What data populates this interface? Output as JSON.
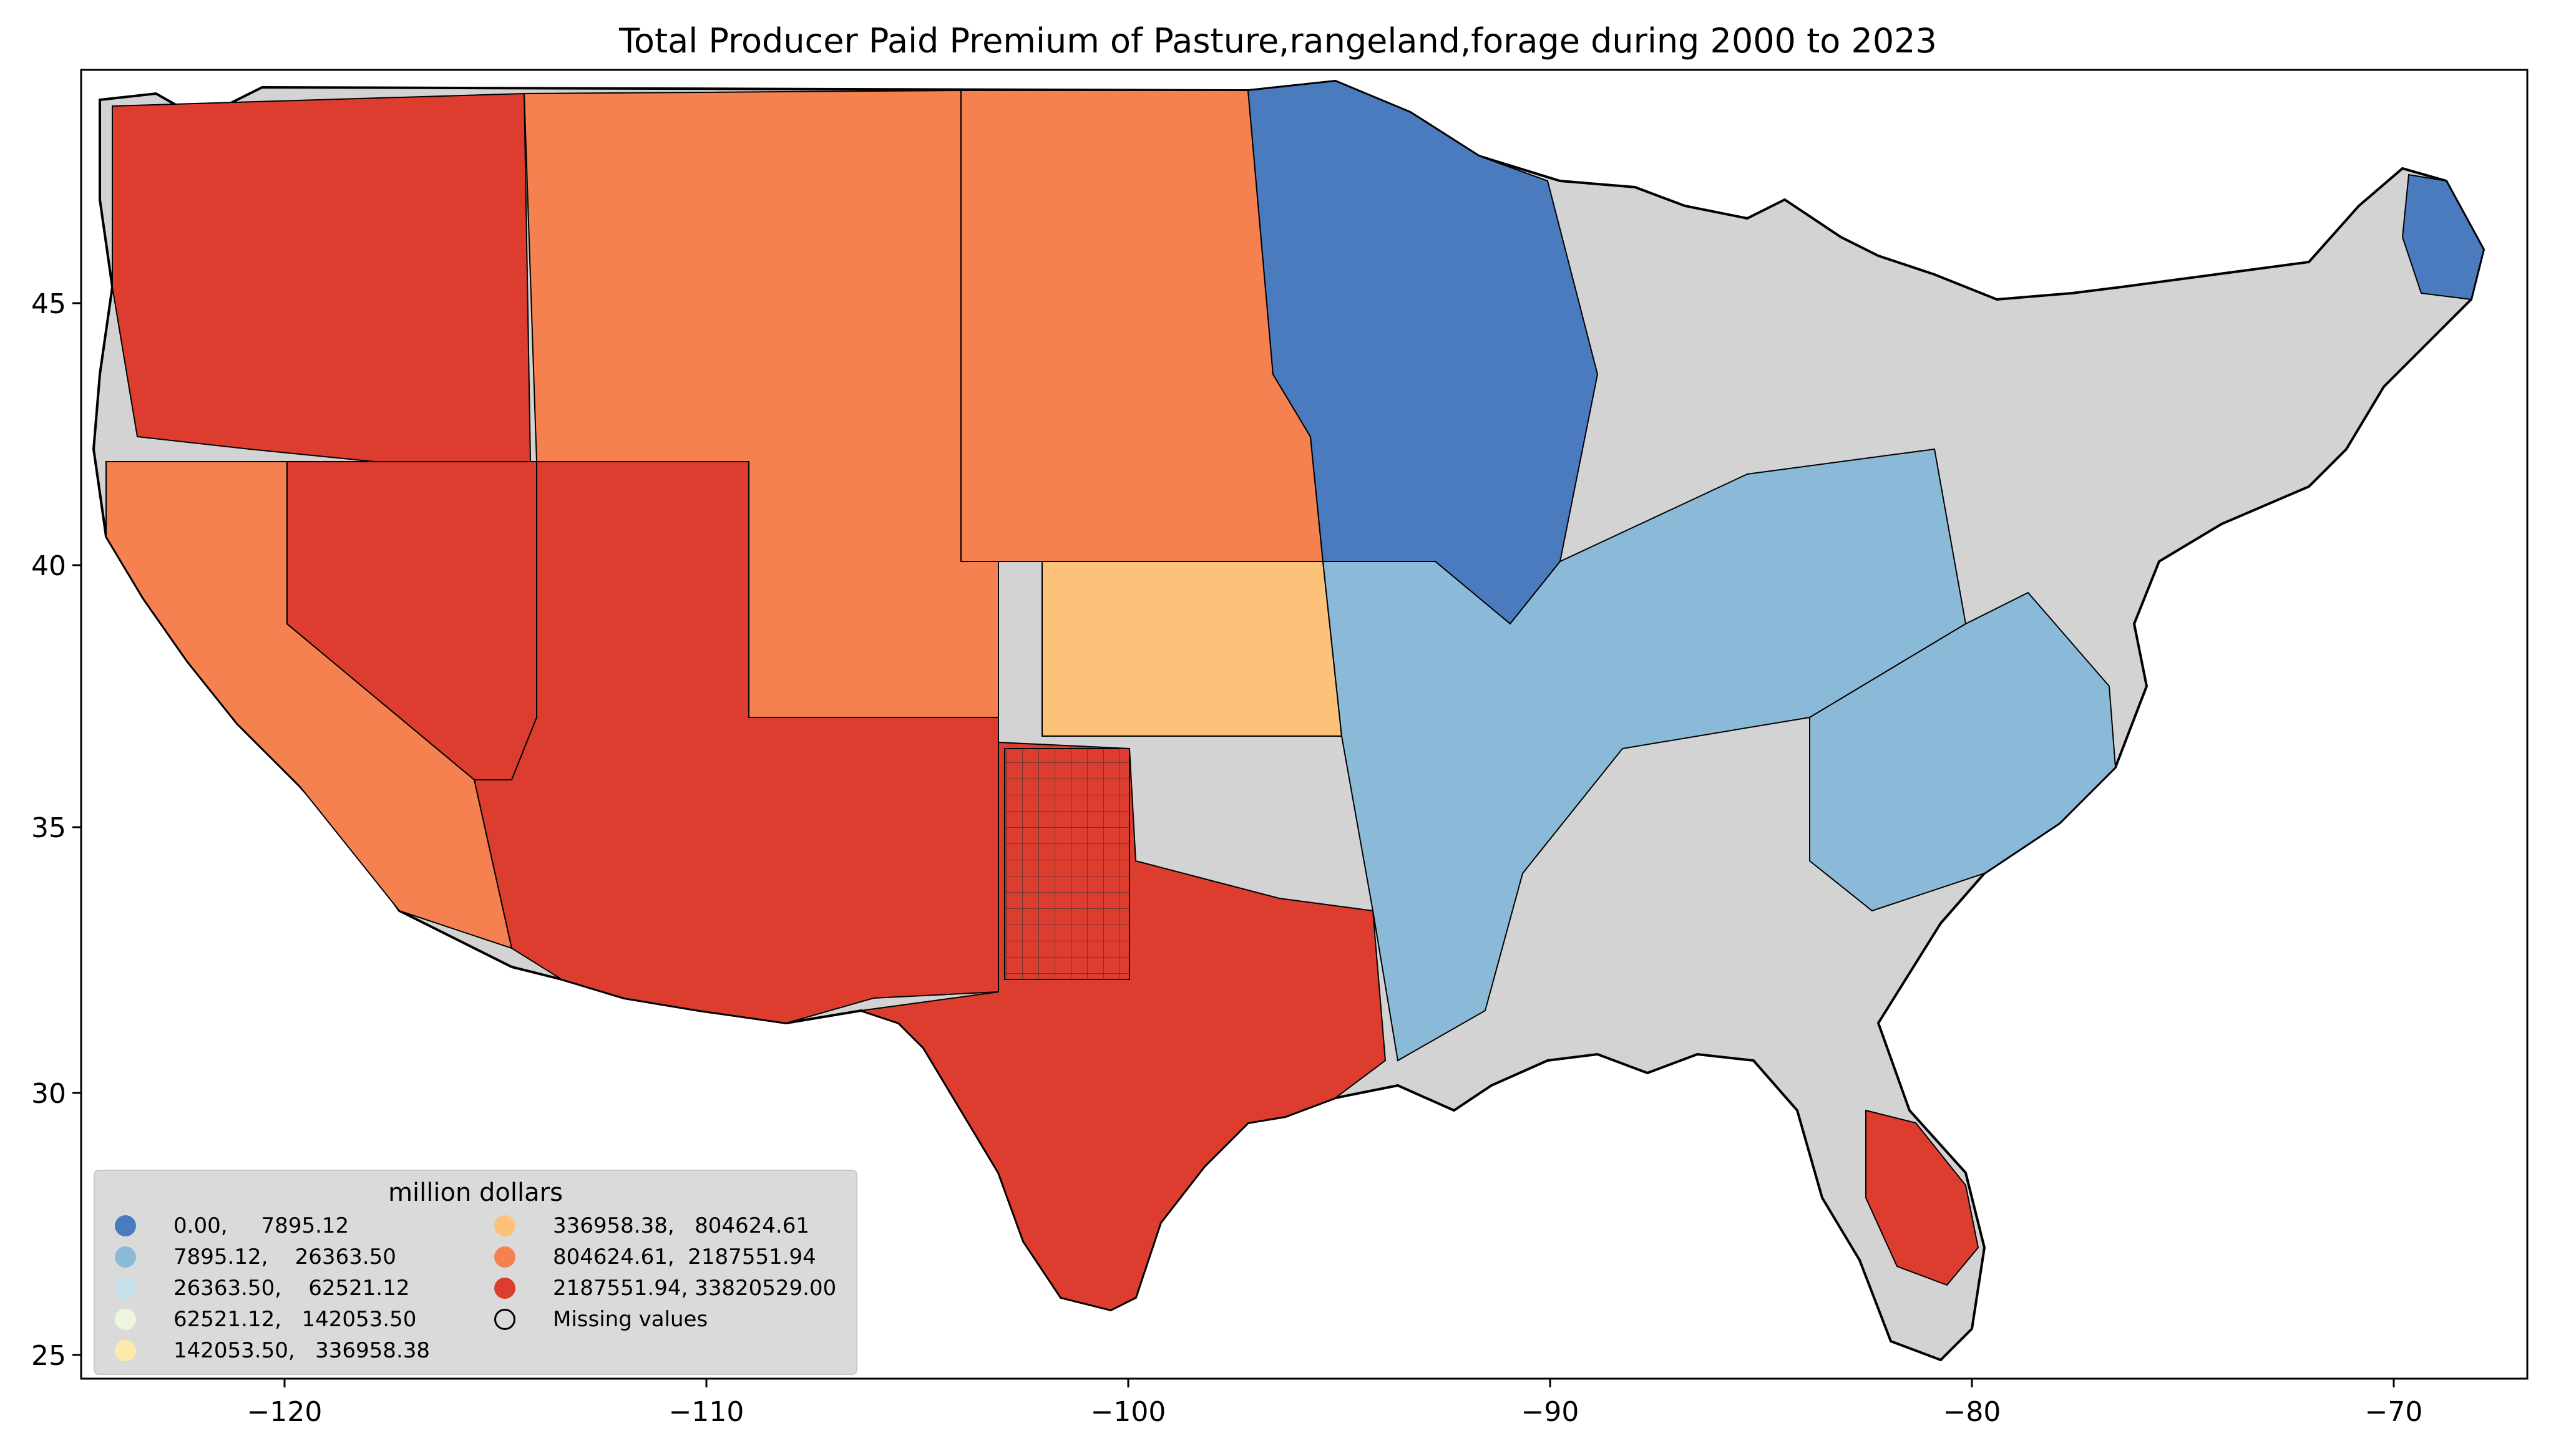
{
  "title": "Total Producer Paid Premium of Pasture,rangeland,forage during 2000 to 2023",
  "axes": {
    "x_ticks": [
      "−120",
      "−110",
      "−100",
      "−90",
      "−80",
      "−70"
    ],
    "y_ticks": [
      "45",
      "40",
      "35",
      "30",
      "25"
    ],
    "xlim": [
      -124.8,
      -66.8
    ],
    "ylim": [
      24.5,
      49.5
    ]
  },
  "legend": {
    "title": "million dollars",
    "placement": "bottom-left",
    "items": [
      {
        "label": "0.00,     7895.12",
        "color": "#4a7bbf"
      },
      {
        "label": "7895.12,    26363.50",
        "color": "#8bbad9"
      },
      {
        "label": "26363.50,    62521.12",
        "color": "#c4e1ec"
      },
      {
        "label": "62521.12,   142053.50",
        "color": "#eef6e2"
      },
      {
        "label": "142053.50,   336958.38",
        "color": "#fde9a9"
      },
      {
        "label": "336958.38,   804624.61",
        "color": "#fdc27a"
      },
      {
        "label": "804624.61,  2187551.94",
        "color": "#f4814f"
      },
      {
        "label": "2187551.94, 33820529.00",
        "color": "#dc3d2e"
      },
      {
        "label": "Missing values",
        "color": "#d3d3d3"
      }
    ]
  },
  "regions": {
    "pacific_northwest": {
      "class": 7
    },
    "california": {
      "class": 6
    },
    "nevada": {
      "class": 7
    },
    "southwest": {
      "class": 7
    },
    "rocky_mountains": {
      "class": 6
    },
    "northern_plains": {
      "class": 6
    },
    "texas": {
      "class": 7
    },
    "texas_oklahoma": {
      "class": 7
    },
    "kansas": {
      "class": 5
    },
    "upper_midwest": {
      "class": 0
    },
    "corn_belt": {
      "class": 1
    },
    "southeast": {
      "class": 8
    },
    "northeast": {
      "class": 8
    },
    "appalachia": {
      "class": 1
    },
    "florida_south": {
      "class": 7
    },
    "maine_north": {
      "class": 0
    }
  }
}
